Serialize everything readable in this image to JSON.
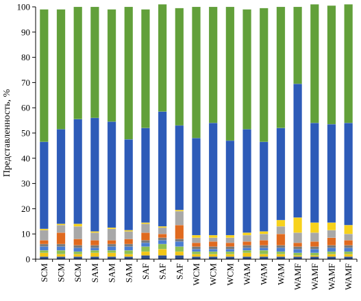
{
  "chart_data": {
    "type": "bar",
    "stacked": true,
    "ylabel": "Представленность, %",
    "ylim": [
      0,
      100
    ],
    "yticks": [
      0,
      10,
      20,
      30,
      40,
      50,
      60,
      70,
      80,
      90,
      100
    ],
    "categories": [
      "SCM",
      "SCM",
      "SCM",
      "SAM",
      "SAM",
      "SAM",
      "SAF",
      "SAF",
      "SAF",
      "WCM",
      "WCM",
      "WCM",
      "WAM",
      "WAM",
      "WAM",
      "WAMF",
      "WAMF",
      "WAMF",
      "WAMF"
    ],
    "grid": false,
    "legend": "none",
    "series": [
      {
        "color": "#2E4F8F",
        "values": [
          1.0,
          1.0,
          1.0,
          1.0,
          1.0,
          1.0,
          1.5,
          1.5,
          1.5,
          1.0,
          1.0,
          1.0,
          1.0,
          1.0,
          1.0,
          1.0,
          1.0,
          1.0,
          1.0
        ]
      },
      {
        "color": "#F2C616",
        "values": [
          1.5,
          1.0,
          1.0,
          1.5,
          1.5,
          1.0,
          1.5,
          2.5,
          1.5,
          1.0,
          1.0,
          1.0,
          1.5,
          1.0,
          1.0,
          0.5,
          0.5,
          1.0,
          1.0
        ]
      },
      {
        "color": "#8FBF52",
        "values": [
          1.0,
          1.5,
          1.0,
          1.0,
          1.0,
          1.5,
          2.0,
          2.0,
          2.0,
          1.0,
          1.0,
          1.0,
          1.0,
          1.5,
          1.0,
          1.0,
          1.0,
          1.0,
          1.0
        ]
      },
      {
        "color": "#4A7DD1",
        "values": [
          1.5,
          1.5,
          1.5,
          1.0,
          1.5,
          1.5,
          1.5,
          1.5,
          2.0,
          1.0,
          1.0,
          1.0,
          1.0,
          1.0,
          1.5,
          1.5,
          1.5,
          1.5,
          1.5
        ]
      },
      {
        "color": "#7A7A7A",
        "values": [
          1.0,
          1.0,
          1.0,
          1.0,
          1.0,
          1.0,
          1.0,
          1.0,
          1.0,
          1.0,
          1.0,
          1.0,
          1.0,
          1.0,
          1.0,
          1.0,
          1.0,
          1.0,
          1.0
        ]
      },
      {
        "color": "#E06A1F",
        "values": [
          1.5,
          4.5,
          2.5,
          2.0,
          1.5,
          2.0,
          3.0,
          1.5,
          5.5,
          1.5,
          2.0,
          1.5,
          1.5,
          2.0,
          4.5,
          1.5,
          2.0,
          3.0,
          2.0
        ]
      },
      {
        "color": "#A8A8A8",
        "values": [
          4.0,
          3.0,
          5.0,
          3.0,
          4.5,
          3.0,
          3.5,
          2.5,
          5.5,
          2.0,
          1.5,
          2.0,
          2.5,
          2.5,
          3.0,
          4.0,
          3.5,
          3.0,
          2.5
        ]
      },
      {
        "color": "#F7D21C",
        "values": [
          0.5,
          0.5,
          1.0,
          0.5,
          0.5,
          0.5,
          0.5,
          0.5,
          0.5,
          1.0,
          1.0,
          1.0,
          1.0,
          1.0,
          2.5,
          6.0,
          4.0,
          3.0,
          3.5
        ]
      },
      {
        "color": "#2D5BB8",
        "values": [
          34.5,
          37.5,
          41.5,
          45.0,
          42.0,
          36.0,
          37.5,
          45.5,
          33.5,
          38.5,
          44.5,
          37.5,
          41.0,
          35.5,
          36.5,
          53.0,
          39.5,
          39.0,
          40.5
        ]
      },
      {
        "color": "#62A03A",
        "values": [
          52.5,
          47.5,
          44.5,
          44.0,
          44.5,
          52.5,
          47.0,
          42.5,
          46.5,
          52.0,
          46.0,
          53.0,
          47.5,
          53.0,
          48.0,
          30.5,
          47.0,
          47.0,
          47.0
        ]
      }
    ]
  }
}
